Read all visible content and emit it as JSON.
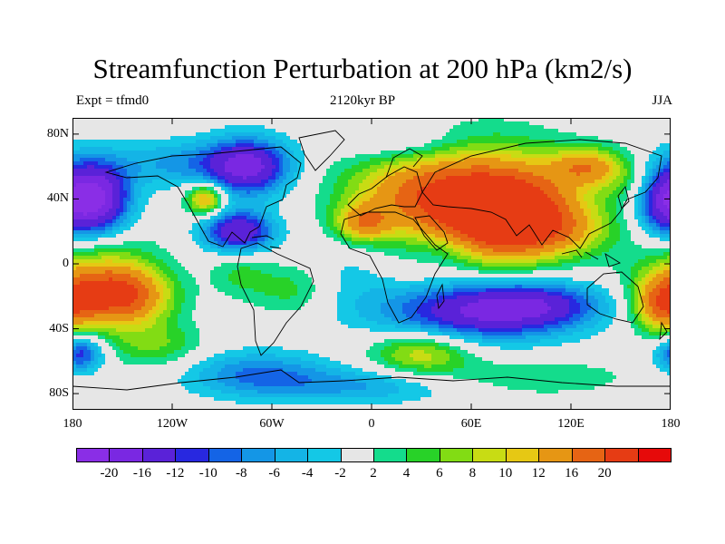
{
  "header": {
    "title": "Streamfunction Perturbation at 200 hPa (km2/s)",
    "left_text": "Expt = tfmd0",
    "center_text": "2120kyr BP",
    "right_text": "JJA"
  },
  "map": {
    "projection": "cylindrical-equidistant",
    "background_color": "#e8e8e8",
    "coastline_color": "#000000",
    "lat_range": [
      -90,
      90
    ],
    "lon_range": [
      -180,
      180
    ],
    "lat_ticks": [
      {
        "value": 80,
        "label": "80N"
      },
      {
        "value": 40,
        "label": "40N"
      },
      {
        "value": 0,
        "label": "0"
      },
      {
        "value": -40,
        "label": "40S"
      },
      {
        "value": -80,
        "label": "80S"
      }
    ],
    "lon_ticks": [
      {
        "value": -180,
        "label": "180"
      },
      {
        "value": -120,
        "label": "120W"
      },
      {
        "value": -60,
        "label": "60W"
      },
      {
        "value": 0,
        "label": "0"
      },
      {
        "value": 60,
        "label": "60E"
      },
      {
        "value": 120,
        "label": "120E"
      },
      {
        "value": 180,
        "label": "180"
      }
    ],
    "field_centers": [
      {
        "lon": 80,
        "lat": 30,
        "value": 20,
        "rlon": 30,
        "rlat": 18
      },
      {
        "lon": 65,
        "lat": 40,
        "value": 14,
        "rlon": 40,
        "rlat": 25
      },
      {
        "lon": 20,
        "lat": 45,
        "value": 8,
        "rlon": 30,
        "rlat": 15
      },
      {
        "lon": -5,
        "lat": 25,
        "value": 12,
        "rlon": 12,
        "rlat": 8
      },
      {
        "lon": 130,
        "lat": 60,
        "value": 12,
        "rlon": 15,
        "rlat": 8
      },
      {
        "lon": 110,
        "lat": 20,
        "value": 6,
        "rlon": 25,
        "rlat": 10
      },
      {
        "lon": -100,
        "lat": 40,
        "value": 14,
        "rlon": 8,
        "rlat": 7
      },
      {
        "lon": -150,
        "lat": -20,
        "value": 16,
        "rlon": 20,
        "rlat": 12
      },
      {
        "lon": -165,
        "lat": -10,
        "value": 10,
        "rlon": 25,
        "rlat": 20
      },
      {
        "lon": 175,
        "lat": -25,
        "value": 14,
        "rlon": 12,
        "rlat": 12
      },
      {
        "lon": -45,
        "lat": -15,
        "value": 6,
        "rlon": 20,
        "rlat": 12
      },
      {
        "lon": 30,
        "lat": -55,
        "value": 10,
        "rlon": 22,
        "rlat": 10
      },
      {
        "lon": -130,
        "lat": -50,
        "value": 6,
        "rlon": 20,
        "rlat": 10
      },
      {
        "lon": -80,
        "lat": -5,
        "value": 4,
        "rlon": 12,
        "rlat": 10
      },
      {
        "lon": 160,
        "lat": 50,
        "value": 4,
        "rlon": 15,
        "rlat": 10
      },
      {
        "lon": 100,
        "lat": -70,
        "value": 4,
        "rlon": 40,
        "rlat": 8
      },
      {
        "lon": -165,
        "lat": 40,
        "value": -20,
        "rlon": 14,
        "rlat": 16
      },
      {
        "lon": 175,
        "lat": 40,
        "value": -14,
        "rlon": 12,
        "rlat": 16
      },
      {
        "lon": -75,
        "lat": 60,
        "value": -18,
        "rlon": 18,
        "rlat": 12
      },
      {
        "lon": -80,
        "lat": 20,
        "value": -16,
        "rlon": 15,
        "rlat": 9
      },
      {
        "lon": -120,
        "lat": 62,
        "value": -6,
        "rlon": 25,
        "rlat": 10
      },
      {
        "lon": 60,
        "lat": -30,
        "value": -14,
        "rlon": 40,
        "rlat": 13
      },
      {
        "lon": 100,
        "lat": -25,
        "value": -10,
        "rlon": 30,
        "rlat": 10
      },
      {
        "lon": -20,
        "lat": -10,
        "value": -4,
        "rlon": 20,
        "rlat": 15
      },
      {
        "lon": -70,
        "lat": -68,
        "value": -8,
        "rlon": 30,
        "rlat": 10
      },
      {
        "lon": 20,
        "lat": 75,
        "value": -4,
        "rlon": 25,
        "rlat": 8
      },
      {
        "lon": 45,
        "lat": 10,
        "value": -4,
        "rlon": 15,
        "rlat": 10
      },
      {
        "lon": -175,
        "lat": -55,
        "value": -12,
        "rlon": 10,
        "rlat": 8
      },
      {
        "lon": -5,
        "lat": -75,
        "value": -6,
        "rlon": 40,
        "rlat": 8
      }
    ]
  },
  "colorbar": {
    "colors": [
      "#8a2ee6",
      "#7a28e2",
      "#5a22d8",
      "#2828e0",
      "#1464e6",
      "#1496e6",
      "#14b4e6",
      "#14c8e6",
      "#e6e6e6",
      "#14dc8c",
      "#28d228",
      "#82dc14",
      "#c8dc14",
      "#e6c814",
      "#e69614",
      "#e66414",
      "#e63c14",
      "#e60a0a"
    ],
    "labels": [
      "-20",
      "-16",
      "-12",
      "-10",
      "-8",
      "-6",
      "-4",
      "-2",
      "2",
      "4",
      "6",
      "8",
      "10",
      "12",
      "16",
      "20"
    ],
    "levels": [
      -20,
      -16,
      -12,
      -10,
      -8,
      -6,
      -4,
      -2,
      2,
      4,
      6,
      8,
      10,
      12,
      16,
      20
    ]
  }
}
